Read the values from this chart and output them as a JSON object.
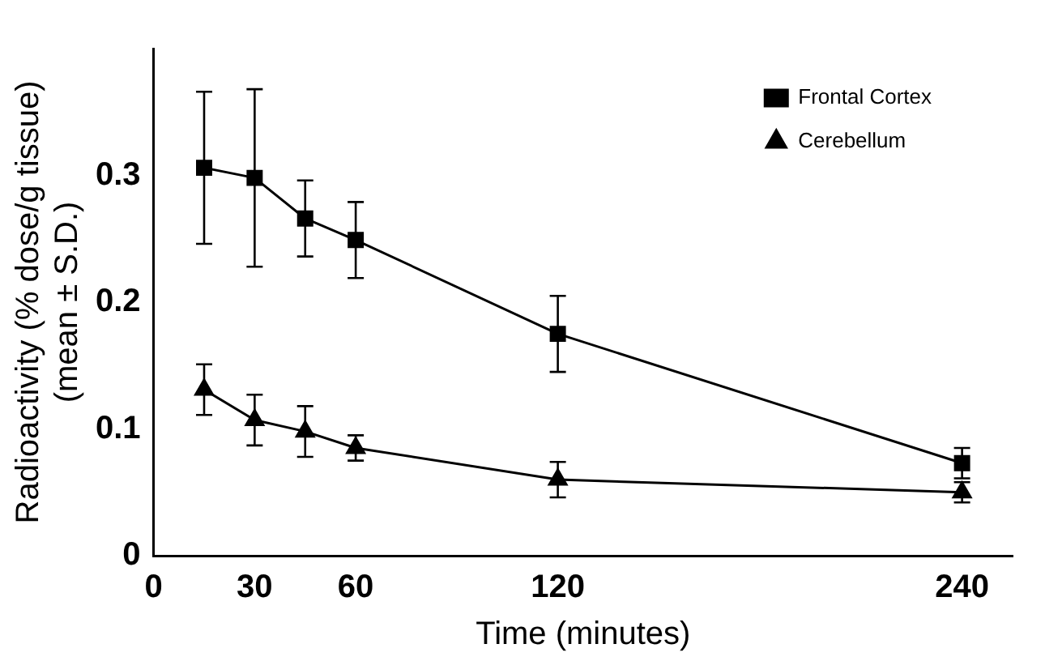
{
  "chart_data": {
    "type": "line",
    "xlabel": "Time (minutes)",
    "ylabel": "Radioactivity (% dose/g tissue)\n(mean ± S.D.)",
    "xlim": [
      0,
      255
    ],
    "xticks": [
      0,
      30,
      60,
      120,
      240
    ],
    "ylim": [
      0,
      0.4
    ],
    "yticks": [
      0,
      0.1,
      0.2,
      0.3
    ],
    "legend": "top right",
    "grid": false,
    "line_style": "solid",
    "series": [
      {
        "name": "Frontal Cortex",
        "color": "#000000",
        "marker": "square",
        "x": [
          15,
          30,
          45,
          60,
          120,
          240
        ],
        "values": [
          0.306,
          0.298,
          0.266,
          0.249,
          0.175,
          0.073
        ],
        "errors": [
          0.06,
          0.07,
          0.03,
          0.03,
          0.03,
          0.012
        ]
      },
      {
        "name": "Cerebellum",
        "color": "#000000",
        "marker": "triangle",
        "x": [
          15,
          30,
          45,
          60,
          120,
          240
        ],
        "values": [
          0.131,
          0.107,
          0.098,
          0.085,
          0.06,
          0.05
        ],
        "errors": [
          0.02,
          0.02,
          0.02,
          0.01,
          0.014,
          0.008
        ]
      }
    ]
  }
}
